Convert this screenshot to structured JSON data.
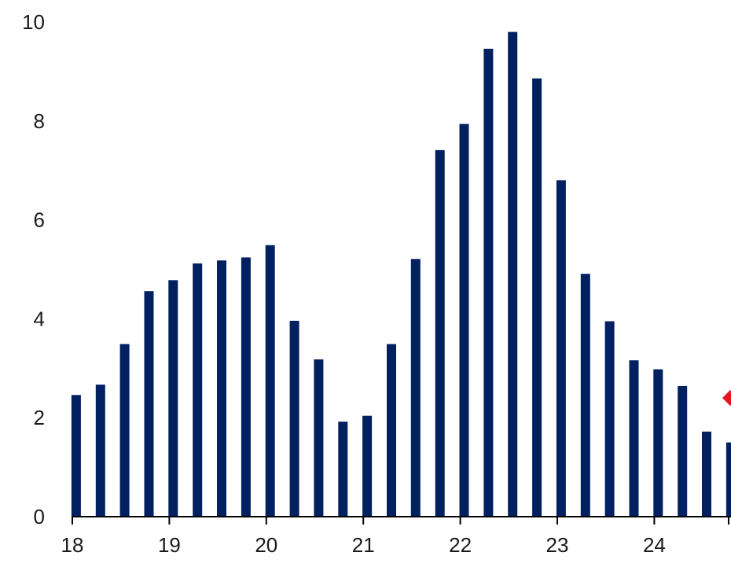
{
  "chart_data": {
    "type": "bar",
    "series_color": "#002060",
    "marker_color": "#e8141e",
    "x_ticks": [
      "18",
      "19",
      "20",
      "21",
      "22",
      "23",
      "24"
    ],
    "xlim": [
      18,
      24.75
    ],
    "y_ticks": [
      "0",
      "2",
      "4",
      "6",
      "8",
      "10"
    ],
    "ylim": [
      0,
      10
    ],
    "grid": false,
    "x": [
      18.04,
      18.29,
      18.54,
      18.79,
      19.04,
      19.29,
      19.54,
      19.79,
      20.04,
      20.29,
      20.54,
      20.79,
      21.04,
      21.29,
      21.54,
      21.79,
      22.04,
      22.29,
      22.54,
      22.79,
      23.04,
      23.29,
      23.54,
      23.79,
      24.04,
      24.29,
      24.54,
      24.79
    ],
    "values": [
      2.46,
      2.67,
      3.49,
      4.56,
      4.78,
      5.12,
      5.18,
      5.24,
      5.49,
      3.96,
      3.18,
      1.92,
      2.04,
      3.49,
      5.21,
      7.41,
      7.94,
      9.46,
      9.8,
      8.86,
      6.8,
      4.91,
      3.95,
      3.16,
      2.98,
      2.64,
      1.72,
      1.5
    ],
    "marker": {
      "x": 24.75,
      "y": 2.4
    }
  }
}
